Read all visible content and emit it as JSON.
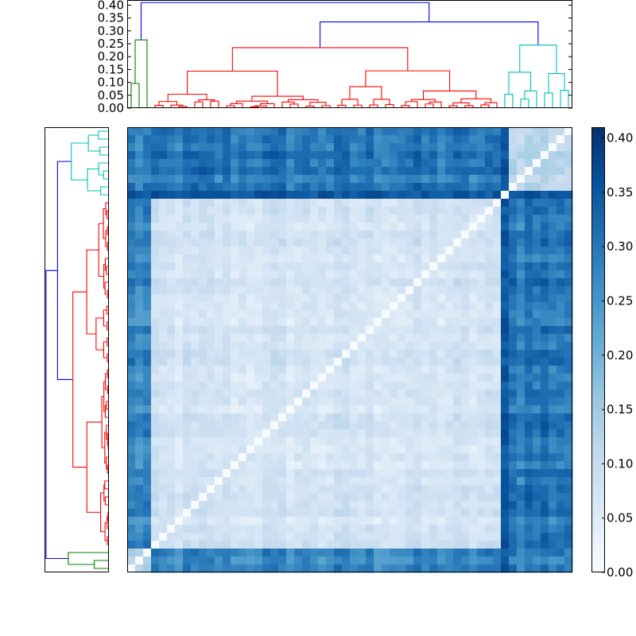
{
  "chart_data": {
    "type": "heatmap",
    "title": "",
    "description": "clustered distance matrix with top and left dendrograms",
    "n": 56,
    "colorscale": "Blues",
    "zlim": [
      0.0,
      0.41
    ],
    "colorbar_ticks": [
      "0.00",
      "0.05",
      "0.10",
      "0.15",
      "0.20",
      "0.25",
      "0.30",
      "0.35",
      "0.40"
    ],
    "colorbar_tick_values": [
      0.0,
      0.05,
      0.1,
      0.15,
      0.2,
      0.25,
      0.3,
      0.35,
      0.4
    ],
    "dendrogram_ylim": [
      0.0,
      0.42
    ],
    "dendrogram_ticks": [
      "0.00",
      "0.05",
      "0.10",
      "0.15",
      "0.20",
      "0.25",
      "0.30",
      "0.35",
      "0.40"
    ],
    "dendrogram_tick_values": [
      0.0,
      0.05,
      0.1,
      0.15,
      0.2,
      0.25,
      0.3,
      0.35,
      0.4
    ],
    "clusters": [
      {
        "name": "green",
        "color": "#008000",
        "size": 3,
        "merge_height": 0.265
      },
      {
        "name": "red",
        "color": "#ff0000",
        "size": 44,
        "merge_height": 0.235
      },
      {
        "name": "cyan",
        "color": "#00bfbf",
        "size": 9,
        "merge_height": 0.245
      }
    ],
    "link_color": "#0000ff",
    "root_height": 0.41,
    "second_merge_height": 0.335,
    "within_cluster_distance": 0.07,
    "between_cluster_distance": {
      "green-red": 0.27,
      "green-cyan": 0.29,
      "red-cyan": 0.3
    },
    "highlight_row": {
      "index": 47,
      "mean_distance": 0.35
    }
  }
}
